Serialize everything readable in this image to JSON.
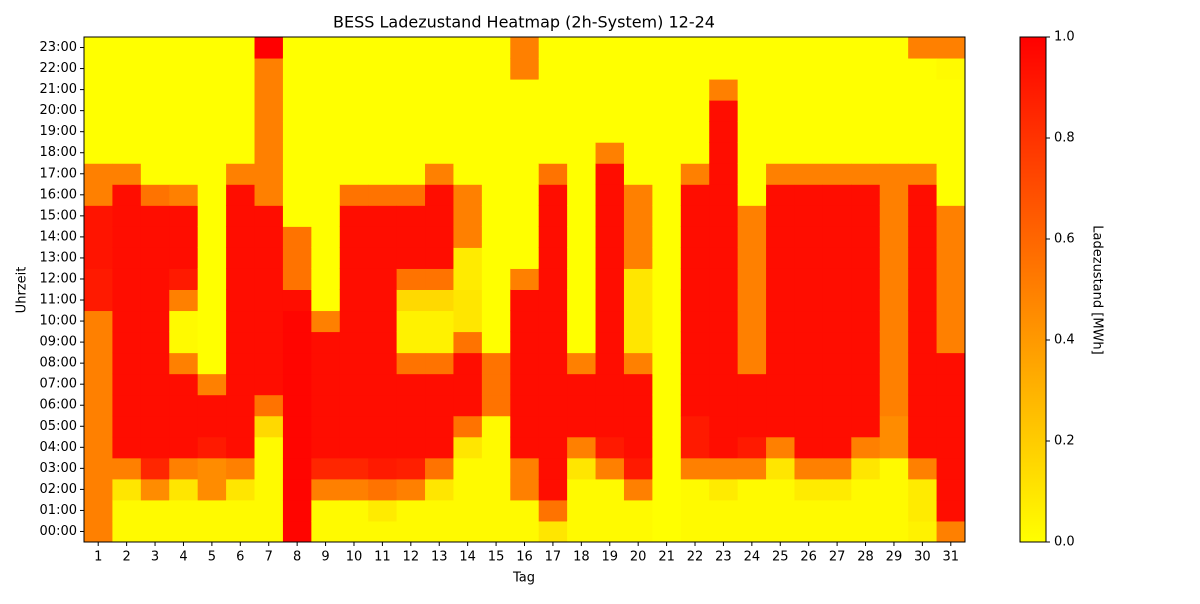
{
  "chart_data": {
    "type": "heatmap",
    "title": "BESS Ladezustand Heatmap (2h-System) 12-24",
    "x_label": "Tag",
    "y_label": "Uhrzeit",
    "colorbar_label": "Ladezustand [MWh]",
    "x": [
      1,
      2,
      3,
      4,
      5,
      6,
      7,
      8,
      9,
      10,
      11,
      12,
      13,
      14,
      15,
      16,
      17,
      18,
      19,
      20,
      21,
      22,
      23,
      24,
      25,
      26,
      27,
      28,
      29,
      30,
      31
    ],
    "y": [
      "00:00",
      "01:00",
      "02:00",
      "03:00",
      "04:00",
      "05:00",
      "06:00",
      "07:00",
      "08:00",
      "09:00",
      "10:00",
      "11:00",
      "12:00",
      "13:00",
      "14:00",
      "15:00",
      "16:00",
      "17:00",
      "18:00",
      "19:00",
      "20:00",
      "21:00",
      "22:00",
      "23:00"
    ],
    "colormap": [
      "#ffff00",
      "#ff0000"
    ],
    "clim": [
      0,
      1
    ],
    "cticks": [
      {
        "value": 0,
        "label": "0.0"
      },
      {
        "value": 0.2,
        "label": "0.2"
      },
      {
        "value": 0.4,
        "label": "0.4"
      },
      {
        "value": 0.6,
        "label": "0.6"
      },
      {
        "value": 0.8,
        "label": "0.8"
      },
      {
        "value": 1,
        "label": "1.0"
      }
    ],
    "values": [
      [
        0.5,
        0.5,
        0.5,
        0.5,
        0.5,
        0.5,
        0.5,
        0.5,
        0.5,
        0.5,
        0.5,
        0.9,
        0.9,
        0.92,
        0.92,
        0.92,
        0.5,
        0.5,
        0,
        0,
        0,
        0,
        0,
        0
      ],
      [
        0.02,
        0.02,
        0.1,
        0.5,
        0.95,
        0.95,
        0.95,
        0.95,
        0.95,
        0.95,
        0.95,
        0.95,
        0.95,
        0.95,
        0.95,
        0.95,
        0.95,
        0.5,
        0,
        0,
        0,
        0,
        0,
        0
      ],
      [
        0.02,
        0.02,
        0.45,
        0.85,
        0.95,
        0.95,
        0.95,
        0.95,
        0.95,
        0.95,
        0.95,
        0.95,
        0.95,
        0.95,
        0.95,
        0.95,
        0.55,
        0,
        0,
        0,
        0,
        0,
        0,
        0
      ],
      [
        0.02,
        0.02,
        0.1,
        0.5,
        0.95,
        0.95,
        0.95,
        0.95,
        0.5,
        0.02,
        0.02,
        0.5,
        0.9,
        0.95,
        0.95,
        0.95,
        0.5,
        0,
        0,
        0,
        0,
        0,
        0,
        0
      ],
      [
        0.02,
        0.02,
        0.45,
        0.45,
        0.9,
        0.95,
        0.95,
        0.5,
        0,
        0,
        0,
        0,
        0,
        0,
        0,
        0,
        0,
        0,
        0,
        0,
        0,
        0,
        0,
        0
      ],
      [
        0.02,
        0.02,
        0.1,
        0.5,
        0.95,
        0.95,
        0.95,
        0.95,
        0.95,
        0.95,
        0.95,
        0.95,
        0.95,
        0.95,
        0.95,
        0.95,
        0.95,
        0.5,
        0,
        0,
        0,
        0,
        0,
        0
      ],
      [
        0.02,
        0.02,
        0.02,
        0.02,
        0.02,
        0.15,
        0.55,
        0.95,
        0.95,
        0.95,
        0.95,
        0.95,
        0.95,
        0.95,
        0.95,
        0.95,
        0.5,
        0.5,
        0.5,
        0.5,
        0.5,
        0.5,
        0.5,
        1.0
      ],
      [
        0.98,
        0.98,
        0.98,
        0.98,
        0.98,
        0.98,
        0.98,
        0.98,
        0.98,
        0.98,
        0.98,
        0.95,
        0.55,
        0.55,
        0.55,
        0,
        0,
        0,
        0,
        0,
        0,
        0,
        0,
        0
      ],
      [
        0.02,
        0.02,
        0.5,
        0.85,
        0.95,
        0.95,
        0.95,
        0.95,
        0.95,
        0.95,
        0.5,
        0,
        0,
        0,
        0,
        0,
        0,
        0,
        0,
        0,
        0,
        0,
        0,
        0
      ],
      [
        0.02,
        0.02,
        0.5,
        0.85,
        0.95,
        0.95,
        0.95,
        0.95,
        0.95,
        0.95,
        0.95,
        0.95,
        0.95,
        0.95,
        0.95,
        0.95,
        0.55,
        0,
        0,
        0,
        0,
        0,
        0,
        0
      ],
      [
        0.02,
        0.08,
        0.55,
        0.9,
        0.95,
        0.95,
        0.95,
        0.95,
        0.95,
        0.95,
        0.95,
        0.95,
        0.95,
        0.95,
        0.95,
        0.95,
        0.55,
        0,
        0,
        0,
        0,
        0,
        0,
        0
      ],
      [
        0.02,
        0.02,
        0.5,
        0.88,
        0.95,
        0.95,
        0.95,
        0.95,
        0.55,
        0.05,
        0.05,
        0.15,
        0.55,
        0.95,
        0.95,
        0.95,
        0.55,
        0,
        0,
        0,
        0,
        0,
        0,
        0
      ],
      [
        0.02,
        0.02,
        0.1,
        0.55,
        0.95,
        0.95,
        0.95,
        0.95,
        0.55,
        0.05,
        0.05,
        0.15,
        0.55,
        0.95,
        0.95,
        0.95,
        0.95,
        0.5,
        0,
        0,
        0,
        0,
        0,
        0
      ],
      [
        0.02,
        0.02,
        0.02,
        0.02,
        0.1,
        0.55,
        0.95,
        0.95,
        0.95,
        0.55,
        0.1,
        0.1,
        0.08,
        0.08,
        0.5,
        0.5,
        0.5,
        0,
        0,
        0,
        0,
        0,
        0,
        0
      ],
      [
        0.02,
        0.02,
        0.02,
        0.02,
        0.02,
        0.02,
        0.55,
        0.55,
        0.55,
        0,
        0,
        0,
        0,
        0,
        0,
        0,
        0,
        0,
        0,
        0,
        0,
        0,
        0,
        0
      ],
      [
        0.02,
        0.02,
        0.5,
        0.5,
        0.95,
        0.95,
        0.95,
        0.95,
        0.95,
        0.95,
        0.95,
        0.95,
        0.5,
        0,
        0,
        0,
        0,
        0,
        0,
        0,
        0,
        0,
        0.5,
        0.5
      ],
      [
        0.1,
        0.55,
        0.95,
        0.95,
        0.95,
        0.95,
        0.95,
        0.95,
        0.95,
        0.95,
        0.95,
        0.95,
        0.95,
        0.95,
        0.95,
        0.95,
        0.95,
        0.55,
        0,
        0,
        0,
        0,
        0,
        0
      ],
      [
        0.02,
        0.02,
        0.02,
        0.1,
        0.5,
        0.95,
        0.95,
        0.95,
        0.5,
        0,
        0,
        0,
        0,
        0,
        0,
        0,
        0,
        0,
        0,
        0,
        0,
        0,
        0,
        0
      ],
      [
        0.02,
        0.02,
        0.02,
        0.5,
        0.9,
        0.95,
        0.95,
        0.95,
        0.95,
        0.95,
        0.95,
        0.95,
        0.95,
        0.95,
        0.95,
        0.95,
        0.95,
        0.95,
        0.5,
        0,
        0,
        0,
        0,
        0
      ],
      [
        0.02,
        0.02,
        0.5,
        0.9,
        0.95,
        0.95,
        0.95,
        0.95,
        0.5,
        0.1,
        0.1,
        0.1,
        0.1,
        0.5,
        0.5,
        0.5,
        0.5,
        0,
        0,
        0,
        0,
        0,
        0,
        0
      ],
      [
        0,
        0,
        0,
        0,
        0,
        0,
        0,
        0,
        0,
        0,
        0,
        0,
        0,
        0,
        0,
        0,
        0,
        0,
        0,
        0,
        0,
        0,
        0,
        0
      ],
      [
        0.02,
        0.02,
        0.02,
        0.5,
        0.9,
        0.9,
        0.95,
        0.95,
        0.95,
        0.95,
        0.95,
        0.95,
        0.95,
        0.95,
        0.95,
        0.95,
        0.95,
        0.5,
        0,
        0,
        0,
        0,
        0,
        0
      ],
      [
        0.02,
        0.02,
        0.08,
        0.5,
        0.95,
        0.95,
        0.95,
        0.95,
        0.95,
        0.95,
        0.95,
        0.95,
        0.95,
        0.95,
        0.95,
        0.95,
        0.95,
        0.95,
        0.95,
        0.95,
        0.95,
        0.5,
        0,
        0
      ],
      [
        0.02,
        0.02,
        0.02,
        0.5,
        0.9,
        0.95,
        0.95,
        0.95,
        0.5,
        0.5,
        0.5,
        0.5,
        0.5,
        0.5,
        0.5,
        0.5,
        0,
        0,
        0,
        0,
        0,
        0,
        0,
        0
      ],
      [
        0.02,
        0.02,
        0.02,
        0.1,
        0.5,
        0.95,
        0.95,
        0.95,
        0.95,
        0.95,
        0.95,
        0.95,
        0.95,
        0.95,
        0.95,
        0.95,
        0.95,
        0.5,
        0,
        0,
        0,
        0,
        0,
        0
      ],
      [
        0.02,
        0.02,
        0.08,
        0.5,
        0.95,
        0.95,
        0.95,
        0.95,
        0.95,
        0.95,
        0.95,
        0.95,
        0.95,
        0.95,
        0.95,
        0.95,
        0.95,
        0.5,
        0,
        0,
        0,
        0,
        0,
        0
      ],
      [
        0.02,
        0.02,
        0.08,
        0.5,
        0.95,
        0.95,
        0.95,
        0.95,
        0.95,
        0.95,
        0.95,
        0.95,
        0.95,
        0.95,
        0.95,
        0.95,
        0.95,
        0.5,
        0,
        0,
        0,
        0,
        0,
        0
      ],
      [
        0.02,
        0.02,
        0.02,
        0.1,
        0.5,
        0.95,
        0.95,
        0.95,
        0.95,
        0.95,
        0.95,
        0.95,
        0.95,
        0.95,
        0.95,
        0.95,
        0.95,
        0.5,
        0,
        0,
        0,
        0,
        0,
        0
      ],
      [
        0.02,
        0.02,
        0.02,
        0.02,
        0.45,
        0.45,
        0.5,
        0.5,
        0.5,
        0.5,
        0.5,
        0.5,
        0.5,
        0.5,
        0.5,
        0.5,
        0.5,
        0.5,
        0,
        0,
        0,
        0,
        0,
        0
      ],
      [
        0.05,
        0.08,
        0.08,
        0.5,
        0.95,
        0.95,
        0.95,
        0.95,
        0.95,
        0.95,
        0.95,
        0.95,
        0.95,
        0.95,
        0.95,
        0.95,
        0.95,
        0.5,
        0,
        0,
        0,
        0,
        0,
        0.5
      ],
      [
        0.5,
        0.95,
        0.95,
        0.95,
        0.95,
        0.95,
        0.95,
        0.95,
        0.95,
        0.5,
        0.5,
        0.5,
        0.5,
        0.5,
        0.5,
        0.5,
        0,
        0,
        0,
        0,
        0,
        0,
        0.02,
        0.5
      ]
    ]
  }
}
